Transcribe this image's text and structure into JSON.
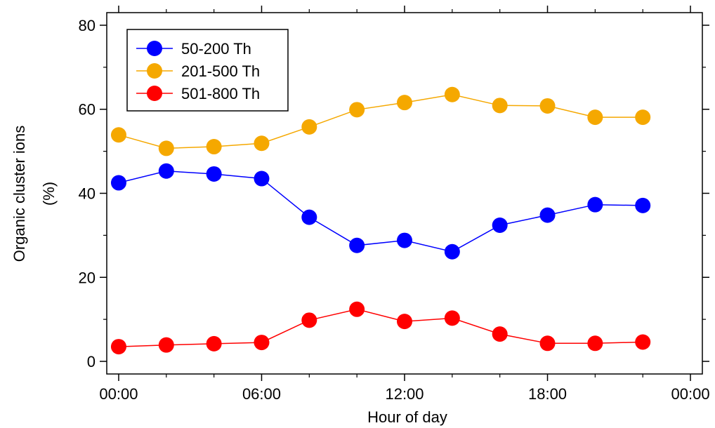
{
  "chart_data": {
    "type": "line",
    "xlabel": "Hour of day",
    "ylabel_lines": [
      "Organic cluster ions",
      "(%)"
    ],
    "x_tick_labels": [
      "00:00",
      "06:00",
      "12:00",
      "18:00",
      "00:00"
    ],
    "x_tick_hours": [
      0,
      6,
      12,
      18,
      24
    ],
    "xlim": [
      -0.5,
      24.5
    ],
    "ylim": [
      -3,
      83
    ],
    "y_ticks": [
      0,
      20,
      40,
      60,
      80
    ],
    "x": [
      0,
      2,
      4,
      6,
      8,
      10,
      12,
      14,
      16,
      18,
      20,
      22
    ],
    "series": [
      {
        "name": "50-200 Th",
        "color": "#0000ff",
        "values": [
          42.5,
          45.3,
          44.6,
          43.5,
          34.3,
          27.6,
          28.8,
          26.1,
          32.4,
          34.8,
          37.3,
          37.1
        ]
      },
      {
        "name": "201-500 Th",
        "color": "#f5a800",
        "values": [
          53.9,
          50.7,
          51.1,
          51.9,
          55.8,
          59.9,
          61.6,
          63.5,
          60.9,
          60.8,
          58.1,
          58.1
        ]
      },
      {
        "name": "501-800 Th",
        "color": "#ff0000",
        "values": [
          3.5,
          3.9,
          4.2,
          4.5,
          9.8,
          12.4,
          9.5,
          10.3,
          6.5,
          4.3,
          4.3,
          4.6
        ]
      }
    ],
    "legend_position": "top-left",
    "grid": false
  }
}
